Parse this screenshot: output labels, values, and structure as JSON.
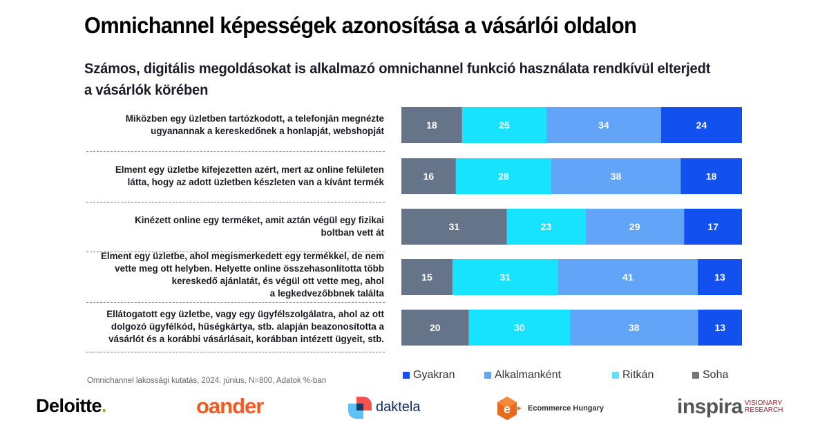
{
  "header": {
    "title": "Omnichannel képességek azonosítása a vásárlói oldalon",
    "subtitle": "Számos, digitális megoldásokat is alkalmazó omnichannel funkció használata rendkívül elterjedt a vásárlók körében"
  },
  "chart_data": {
    "type": "bar",
    "orientation": "horizontal",
    "stacked": true,
    "title": "Omnichannel képességek azonosítása a vásárlói oldalon",
    "subtitle": "Számos, digitális megoldásokat is alkalmazó omnichannel funkció használata rendkívül elterjedt a vásárlók körében",
    "xlabel": "",
    "ylabel": "",
    "unit": "%",
    "categories": [
      [
        "Miközben egy üzletben tartózkodott, a telefonján megnézte",
        "ugyanannak a kereskedőnek a honlapját, webshopját"
      ],
      [
        "Elment egy üzletbe kifejezetten azért, mert az online felületen",
        "látta, hogy az adott üzletben készleten van a kívánt termék"
      ],
      [
        "Kinézett online egy terméket, amit aztán végül egy fizikai",
        "boltban vett át"
      ],
      [
        "Elment egy üzletbe, ahol megismerkedett egy termékkel, de nem",
        "vette meg ott helyben. Helyette online összehasonlította több",
        "kereskedő ajánlatát, és végül ott vette meg, ahol",
        "a legkedvezőbbnek találta"
      ],
      [
        "Ellátogatott egy üzletbe, vagy egy ügyfélszolgálatra, ahol az ott",
        "dolgozó ügyfélkód, hűségkártya, stb. alapján beazonosította a",
        "vásárlót és a korábbi vásárlásait, korábban intézett ügyeit, stb."
      ]
    ],
    "series": [
      {
        "name": "Soha",
        "color": "#667489",
        "values": [
          18,
          16,
          31,
          15,
          20
        ]
      },
      {
        "name": "Ritkán",
        "color": "#17e3ff",
        "values": [
          25,
          28,
          23,
          31,
          30
        ]
      },
      {
        "name": "Alkalmanként",
        "color": "#62a4f8",
        "values": [
          34,
          38,
          29,
          41,
          38
        ]
      },
      {
        "name": "Gyakran",
        "color": "#1250f0",
        "values": [
          24,
          18,
          17,
          13,
          13
        ]
      }
    ],
    "legend": {
      "placement": "bottom-right",
      "order": [
        "Gyakran",
        "Alkalmanként",
        "Ritkán",
        "Soha"
      ],
      "swatch_colors": [
        "#1250f0",
        "#62a4f8",
        "#62e0fa",
        "#777777"
      ]
    },
    "xlim": [
      0,
      100
    ],
    "grid": false,
    "data_labels": true
  },
  "footer": {
    "source": "Omnichannel lakossági kutatás, 2024. június, N=800, Adatok %-ban",
    "logos": {
      "deloitte": "Deloitte",
      "deloitte_dot": ".",
      "oander": "oander",
      "daktela": "daktela",
      "ecommerce": "Ecommerce Hungary",
      "inspira": "inspira",
      "inspira_sub1": "VISIONARY",
      "inspira_sub2": "RESEARCH"
    }
  }
}
